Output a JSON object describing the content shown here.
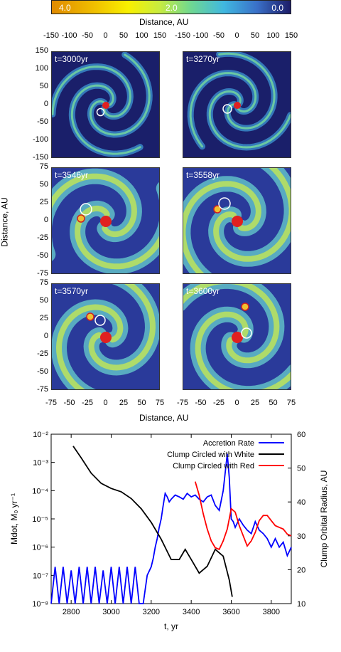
{
  "colorbar": {
    "left": "4.0",
    "mid": "2.0",
    "right": "0.0"
  },
  "top_axis": {
    "label": "Distance, AU",
    "ticks": [
      "-150",
      "-100",
      "-50",
      "0",
      "50",
      "100",
      "150"
    ]
  },
  "left_axis_top": {
    "ticks": [
      "150",
      "100",
      "50",
      "0",
      "-50",
      "-100",
      "-150"
    ]
  },
  "left_axis_mid": {
    "ticks": [
      "75",
      "50",
      "25",
      "0",
      "-25",
      "-50",
      "-75"
    ]
  },
  "left_axis_label": "Distance, AU",
  "bottom_axis": {
    "label": "Distance, AU",
    "ticks": [
      "-75",
      "-50",
      "-25",
      "0",
      "25",
      "50",
      "75"
    ]
  },
  "panels": [
    {
      "label": "t=3000yr"
    },
    {
      "label": "t=3270yr"
    },
    {
      "label": "t=3546yr"
    },
    {
      "label": "t=3558yr"
    },
    {
      "label": "t=3570yr"
    },
    {
      "label": "t=3600yr"
    }
  ],
  "chart_data": {
    "type": "line",
    "xlabel": "t, yr",
    "ylabel": "Mdot, M₀ yr⁻¹",
    "y2label": "Clump Orbital Radius, AU",
    "xlim": [
      2700,
      3900
    ],
    "xticks": [
      "2800",
      "3000",
      "3200",
      "3400",
      "3600",
      "3800"
    ],
    "ylim_log": [
      1e-08,
      0.01
    ],
    "yticks": [
      "10⁻²",
      "10⁻³",
      "10⁻⁴",
      "10⁻⁵",
      "10⁻⁶",
      "10⁻⁷",
      "10⁻⁸"
    ],
    "y2lim": [
      10,
      60
    ],
    "y2ticks": [
      "60",
      "50",
      "40",
      "30",
      "20",
      "10"
    ],
    "legend_position": "top-right",
    "series": [
      {
        "name": "Accretion Rate",
        "color": "#0000ff",
        "axis": "left",
        "x": [
          2700,
          2720,
          2740,
          2760,
          2780,
          2800,
          2820,
          2840,
          2860,
          2880,
          2900,
          2920,
          2940,
          2960,
          2980,
          3000,
          3020,
          3040,
          3060,
          3080,
          3100,
          3120,
          3140,
          3160,
          3180,
          3200,
          3210,
          3220,
          3230,
          3240,
          3250,
          3260,
          3270,
          3280,
          3290,
          3300,
          3320,
          3340,
          3360,
          3380,
          3400,
          3420,
          3440,
          3460,
          3480,
          3500,
          3520,
          3540,
          3560,
          3580,
          3590,
          3600,
          3610,
          3620,
          3640,
          3660,
          3680,
          3700,
          3720,
          3740,
          3760,
          3780,
          3800,
          3820,
          3840,
          3860,
          3880,
          3900
        ],
        "y": [
          1e-08,
          2e-07,
          1e-08,
          2e-07,
          1e-08,
          1.5e-07,
          1e-08,
          2e-07,
          1e-08,
          2e-07,
          1e-08,
          2e-07,
          1e-08,
          1.5e-07,
          1e-08,
          2e-07,
          1e-08,
          2e-07,
          1e-08,
          2e-07,
          1e-08,
          2e-07,
          1e-08,
          1e-08,
          1e-07,
          2e-07,
          4e-07,
          1e-06,
          2e-06,
          5e-06,
          1e-05,
          3e-05,
          8e-05,
          6e-05,
          4e-05,
          5e-05,
          7e-05,
          6e-05,
          5e-05,
          8e-05,
          6e-05,
          7e-05,
          5e-05,
          4e-05,
          6e-05,
          7e-05,
          3e-05,
          2e-05,
          0.0001,
          0.002,
          0.0003,
          1e-05,
          8e-06,
          5e-06,
          1e-05,
          6e-06,
          4e-06,
          3e-06,
          8e-06,
          4e-06,
          3e-06,
          2e-06,
          1e-06,
          2e-06,
          1e-06,
          1.5e-06,
          5e-07,
          1e-06
        ]
      },
      {
        "name": "Clump Circled with White",
        "color": "#000000",
        "axis": "right",
        "x": [
          2810,
          2850,
          2900,
          2950,
          3000,
          3050,
          3100,
          3150,
          3200,
          3250,
          3300,
          3340,
          3370,
          3400,
          3440,
          3480,
          3520,
          3560,
          3590,
          3605
        ],
        "y": [
          56.5,
          53,
          48.5,
          45.5,
          44,
          43,
          41,
          38,
          34,
          29,
          23,
          23,
          26,
          23,
          19,
          21,
          26,
          24,
          17,
          12
        ]
      },
      {
        "name": "Clump Circled with Red",
        "color": "#ff0000",
        "axis": "right",
        "x": [
          3420,
          3440,
          3460,
          3480,
          3500,
          3520,
          3540,
          3560,
          3580,
          3600,
          3620,
          3640,
          3660,
          3680,
          3700,
          3720,
          3740,
          3760,
          3780,
          3800,
          3820,
          3840,
          3860,
          3880,
          3900
        ],
        "y": [
          46,
          42,
          36.5,
          32,
          28.5,
          26.5,
          26,
          28.5,
          32,
          38,
          37,
          33,
          30,
          27,
          28.5,
          31,
          34.5,
          36,
          36,
          34.5,
          33,
          32.5,
          32,
          30.5,
          30
        ]
      }
    ]
  }
}
